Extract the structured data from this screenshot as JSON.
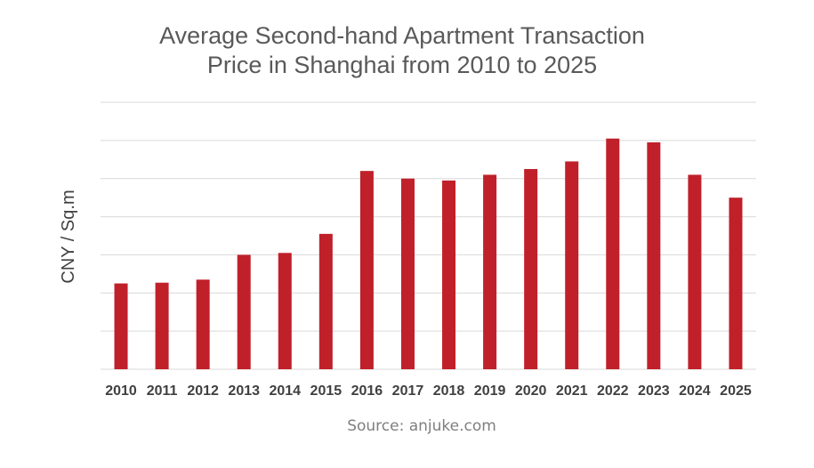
{
  "chart_data": {
    "type": "bar",
    "title_lines": [
      "Average Second-hand Apartment Transaction",
      "Price in Shanghai from 2010 to 2025"
    ],
    "ylabel": "CNY / Sq.m",
    "xlabel": "",
    "categories": [
      "2010",
      "2011",
      "2012",
      "2013",
      "2014",
      "2015",
      "2016",
      "2017",
      "2018",
      "2019",
      "2020",
      "2021",
      "2022",
      "2023",
      "2024",
      "2025"
    ],
    "values": [
      22.5,
      22.7,
      23.5,
      30,
      30.5,
      35.5,
      52,
      50,
      49.5,
      51,
      52.5,
      54.5,
      60.5,
      59.5,
      51,
      45
    ],
    "ylim": [
      0,
      70
    ],
    "grid_step": 10,
    "y_tick_labels_shown": false,
    "grid": true,
    "bar_color": "#c0202a"
  },
  "source": "Source: anjuke.com"
}
